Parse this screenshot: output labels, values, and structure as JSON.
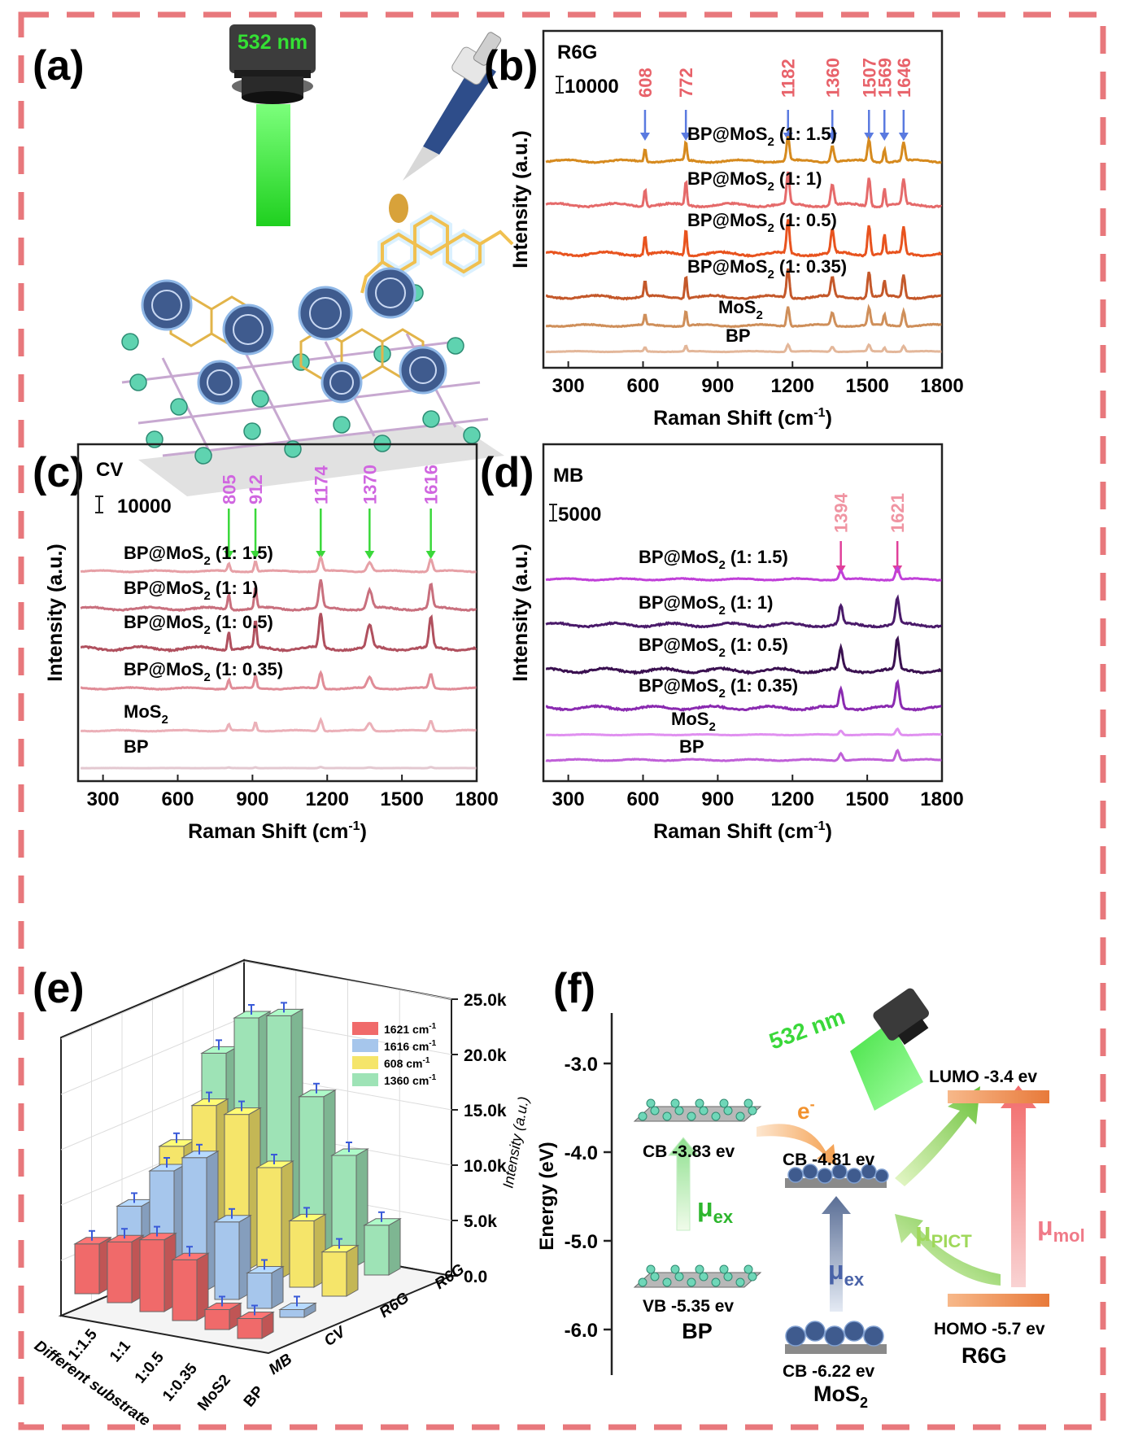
{
  "panels": {
    "a": {
      "label": "(a)",
      "laser": "532 nm"
    },
    "f": {
      "label": "(f)",
      "laser": "532 nm",
      "axis_label": "Energy (eV)",
      "ticks": [
        "-3.0",
        "-4.0",
        "-5.0",
        "-6.0"
      ],
      "bp_cb": "CB  -3.83 ev",
      "bp_vb": "VB  -5.35 ev",
      "bp_name": "BP",
      "mos2_cb_top": "CB  -4.81 ev",
      "mos2_cb_bottom": "CB  -6.22 ev",
      "mos2_name": "MoS",
      "mos2_sub": "2",
      "lumo": "LUMO  -3.4 ev",
      "homo": "HOMO  -5.7 ev",
      "r6g_name": "R6G",
      "electron": "e",
      "electron_sup": "-",
      "mu": "μ",
      "mu_ex_sub": "ex",
      "mu_pict_sub": "PICT",
      "mu_mol_sub": "mol"
    }
  },
  "chart_data": [
    {
      "id": "b",
      "label": "(b)",
      "type": "line",
      "analyte": "R6G",
      "scale_bar": "10000",
      "xlabel": "Raman Shift (cm",
      "xlabel_sup": "-1",
      "xlabel_end": ")",
      "ylabel": "Intensity (a.u.)",
      "xlim": [
        200,
        1800
      ],
      "x_ticks": [
        "300",
        "600",
        "900",
        "1200",
        "1500",
        "1800"
      ],
      "peaks": [
        {
          "pos": 608,
          "text": "608"
        },
        {
          "pos": 772,
          "text": "772"
        },
        {
          "pos": 1182,
          "text": "1182"
        },
        {
          "pos": 1360,
          "text": "1360"
        },
        {
          "pos": 1507,
          "text": "1507"
        },
        {
          "pos": 1569,
          "text": "1569"
        },
        {
          "pos": 1646,
          "text": "1646"
        }
      ],
      "series": [
        {
          "name": "BP@MoS2 (1: 1.5)",
          "label_main": "BP@MoS",
          "label_sub": "2",
          "label_tail": " (1: 1.5)",
          "color": "#d68a1e",
          "offset": 5,
          "scale": 1.0
        },
        {
          "name": "BP@MoS2 (1: 1)",
          "label_main": "BP@MoS",
          "label_sub": "2",
          "label_tail": " (1: 1)",
          "color": "#e56a6a",
          "offset": 4,
          "scale": 1.3
        },
        {
          "name": "BP@MoS2 (1: 0.5)",
          "label_main": "BP@MoS",
          "label_sub": "2",
          "label_tail": " (1: 0.5)",
          "color": "#e8531e",
          "offset": 3,
          "scale": 1.4
        },
        {
          "name": "BP@MoS2 (1: 0.35)",
          "label_main": "BP@MoS",
          "label_sub": "2",
          "label_tail": " (1: 0.35)",
          "color": "#c4582a",
          "offset": 2,
          "scale": 1.2
        },
        {
          "name": "MoS2",
          "label_main": "MoS",
          "label_sub": "2",
          "label_tail": "",
          "color": "#cf8f5a",
          "offset": 1,
          "scale": 0.8
        },
        {
          "name": "BP",
          "label_main": "BP",
          "label_sub": "",
          "label_tail": "",
          "color": "#e3b79a",
          "offset": 0,
          "scale": 0.3
        }
      ]
    },
    {
      "id": "c",
      "label": "(c)",
      "type": "line",
      "analyte": "CV",
      "scale_bar": "10000",
      "xlabel": "Raman Shift (cm",
      "xlabel_sup": "-1",
      "xlabel_end": ")",
      "ylabel": "Intensity (a.u.)",
      "xlim": [
        200,
        1800
      ],
      "x_ticks": [
        "300",
        "600",
        "900",
        "1200",
        "1500",
        "1800"
      ],
      "peaks": [
        {
          "pos": 805,
          "text": "805"
        },
        {
          "pos": 912,
          "text": "912"
        },
        {
          "pos": 1174,
          "text": "1174"
        },
        {
          "pos": 1370,
          "text": "1370"
        },
        {
          "pos": 1616,
          "text": "1616"
        }
      ],
      "series": [
        {
          "name": "BP@MoS2 (1: 1.5)",
          "label_main": "BP@MoS",
          "label_sub": "2",
          "label_tail": " (1: 1.5)",
          "color": "#e6a0a6",
          "offset": 5,
          "scale": 0.6
        },
        {
          "name": "BP@MoS2 (1: 1)",
          "label_main": "BP@MoS",
          "label_sub": "2",
          "label_tail": " (1: 1)",
          "color": "#c9707e",
          "offset": 4,
          "scale": 1.2
        },
        {
          "name": "BP@MoS2 (1: 0.5)",
          "label_main": "BP@MoS",
          "label_sub": "2",
          "label_tail": " (1: 0.5)",
          "color": "#b0505e",
          "offset": 3,
          "scale": 1.5
        },
        {
          "name": "BP@MoS2 (1: 0.35)",
          "label_main": "BP@MoS",
          "label_sub": "2",
          "label_tail": " (1: 0.35)",
          "color": "#e08c97",
          "offset": 2,
          "scale": 0.7
        },
        {
          "name": "MoS2",
          "label_main": "MoS",
          "label_sub": "2",
          "label_tail": "",
          "color": "#ebb0b8",
          "offset": 1,
          "scale": 0.5
        },
        {
          "name": "BP",
          "label_main": "BP",
          "label_sub": "",
          "label_tail": "",
          "color": "#e3c8d0",
          "offset": 0,
          "scale": 0.05
        }
      ]
    },
    {
      "id": "d",
      "label": "(d)",
      "type": "line",
      "analyte": "MB",
      "scale_bar": "5000",
      "xlabel": "Raman Shift (cm",
      "xlabel_sup": "-1",
      "xlabel_end": ")",
      "ylabel": "Intensity (a.u.)",
      "xlim": [
        200,
        1800
      ],
      "x_ticks": [
        "300",
        "600",
        "900",
        "1200",
        "1500",
        "1800"
      ],
      "peaks": [
        {
          "pos": 1394,
          "text": "1394"
        },
        {
          "pos": 1621,
          "text": "1621"
        }
      ],
      "series": [
        {
          "name": "BP@MoS2 (1: 1.5)",
          "label_main": "BP@MoS",
          "label_sub": "2",
          "label_tail": " (1: 1.5)",
          "color": "#c040d8",
          "offset": 5,
          "scale": 0.6
        },
        {
          "name": "BP@MoS2 (1: 1)",
          "label_main": "BP@MoS",
          "label_sub": "2",
          "label_tail": " (1: 1)",
          "color": "#4a1a6a",
          "offset": 4,
          "scale": 1.3
        },
        {
          "name": "BP@MoS2 (1: 0.5)",
          "label_main": "BP@MoS",
          "label_sub": "2",
          "label_tail": " (1: 0.5)",
          "color": "#3a1050",
          "offset": 3,
          "scale": 1.5
        },
        {
          "name": "BP@MoS2 (1: 0.35)",
          "label_main": "BP@MoS",
          "label_sub": "2",
          "label_tail": " (1: 0.35)",
          "color": "#8a2ab0",
          "offset": 2,
          "scale": 1.3
        },
        {
          "name": "MoS2",
          "label_main": "MoS",
          "label_sub": "2",
          "label_tail": "",
          "color": "#e090f0",
          "offset": 1,
          "scale": 0.3
        },
        {
          "name": "BP",
          "label_main": "BP",
          "label_sub": "",
          "label_tail": "",
          "color": "#c060d8",
          "offset": 0,
          "scale": 0.5
        }
      ]
    },
    {
      "id": "e",
      "label": "(e)",
      "type": "bar",
      "subtype": "3d-bar",
      "zlabel": "Intensity (a.u.)",
      "zlim": [
        0,
        25000
      ],
      "z_ticks": [
        "0.0",
        "5.0k",
        "10.0k",
        "15.0k",
        "20.0k",
        "25.0k"
      ],
      "x_axis_label": "Different substrate",
      "categories": [
        "1:1.5",
        "1:1",
        "1:0.5",
        "1:0.35",
        "MoS2",
        "BP"
      ],
      "y_categories": [
        "R6G",
        "R6G",
        "CV",
        "MB"
      ],
      "series": [
        {
          "name": "1621 cm-1",
          "legend_main": "1621 cm",
          "legend_sup": "-1",
          "color": "#f06a6a",
          "analyte": "MB",
          "values": [
            4500,
            5500,
            6500,
            5500,
            1800,
            1800
          ]
        },
        {
          "name": "1616 cm-1",
          "legend_main": "1616 cm",
          "legend_sup": "-1",
          "color": "#a6c6ec",
          "analyte": "CV",
          "values": [
            6000,
            10000,
            12000,
            7000,
            3200,
            700
          ]
        },
        {
          "name": "608 cm-1",
          "legend_main": "608 cm",
          "legend_sup": "-1",
          "color": "#f5e56a",
          "analyte": "R6G",
          "values": [
            9500,
            14000,
            14000,
            10000,
            6000,
            4000
          ]
        },
        {
          "name": "1360 cm-1",
          "legend_main": "1360 cm",
          "legend_sup": "-1",
          "color": "#9ee3b6",
          "analyte": "R6G",
          "values": [
            16000,
            20000,
            21000,
            14500,
            10000,
            4500
          ]
        }
      ]
    }
  ]
}
